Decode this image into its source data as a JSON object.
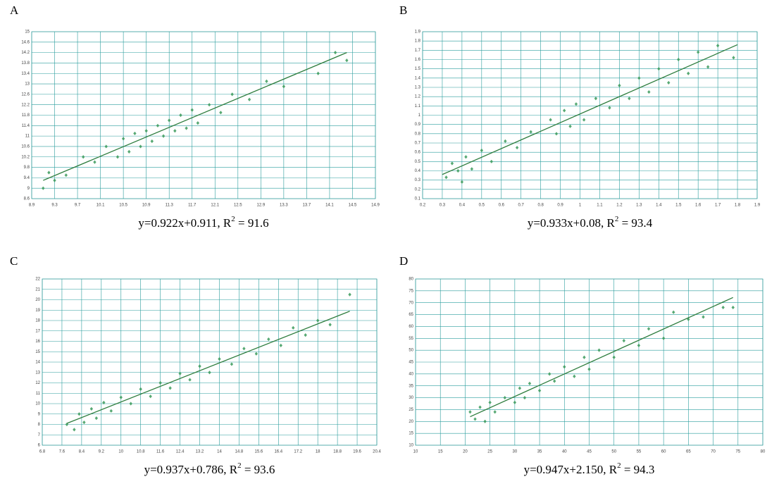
{
  "chart_data": [
    {
      "type": "scatter",
      "label": "A",
      "equation": {
        "text": "y=0.922x+0.911,  R",
        "superscript": "2",
        "value": " =  91.6"
      },
      "xlim": [
        8.9,
        14.9
      ],
      "ylim": [
        8.6,
        15
      ],
      "xticks": [
        8.9,
        9.3,
        9.7,
        10.1,
        10.5,
        10.9,
        11.3,
        11.7,
        12.1,
        12.5,
        12.9,
        13.3,
        13.7,
        14.1,
        14.5,
        14.9
      ],
      "yticks": [
        8.6,
        9,
        9.4,
        9.8,
        10.2,
        10.6,
        11,
        11.4,
        11.8,
        12.2,
        12.6,
        13,
        13.4,
        13.8,
        14.2,
        14.6,
        15
      ],
      "grid": true,
      "color": "#3a9a5a",
      "series": [
        {
          "color": "#3a9a5a",
          "x": [
            9.1,
            9.2,
            9.3,
            9.5,
            9.8,
            10.0,
            10.2,
            10.4,
            10.5,
            10.6,
            10.7,
            10.8,
            10.9,
            11.0,
            11.1,
            11.2,
            11.3,
            11.4,
            11.5,
            11.6,
            11.7,
            11.8,
            12.0,
            12.2,
            12.4,
            12.7,
            13.0,
            13.3,
            13.9,
            14.2,
            14.4
          ],
          "y": [
            9.0,
            9.6,
            9.3,
            9.5,
            10.2,
            10.0,
            10.6,
            10.2,
            10.9,
            10.4,
            11.1,
            10.6,
            11.2,
            10.8,
            11.4,
            11.0,
            11.6,
            11.2,
            11.8,
            11.3,
            12.0,
            11.5,
            12.2,
            11.9,
            12.6,
            12.4,
            13.1,
            12.9,
            13.4,
            14.2,
            13.9
          ]
        }
      ],
      "fit_line": {
        "color": "#2e7d3e",
        "x": [
          9.1,
          14.4
        ],
        "y": [
          9.3,
          14.2
        ]
      }
    },
    {
      "type": "scatter",
      "label": "B",
      "equation": {
        "text": "y=0.933x+0.08,  R",
        "superscript": "2",
        "value": " =  93.4"
      },
      "xlim": [
        0.2,
        1.9
      ],
      "ylim": [
        0.1,
        1.9
      ],
      "xticks": [
        0.2,
        0.3,
        0.4,
        0.5,
        0.6,
        0.7,
        0.8,
        0.9,
        1,
        1.1,
        1.2,
        1.3,
        1.4,
        1.5,
        1.6,
        1.7,
        1.8,
        1.9
      ],
      "yticks": [
        0.1,
        0.2,
        0.3,
        0.4,
        0.5,
        0.6,
        0.7,
        0.8,
        0.9,
        1,
        1.1,
        1.2,
        1.3,
        1.4,
        1.5,
        1.6,
        1.7,
        1.8,
        1.9
      ],
      "grid": true,
      "color": "#3a9a5a",
      "series": [
        {
          "color": "#3a9a5a",
          "x": [
            0.32,
            0.35,
            0.38,
            0.4,
            0.42,
            0.45,
            0.5,
            0.55,
            0.62,
            0.68,
            0.75,
            0.85,
            0.88,
            0.92,
            0.95,
            0.98,
            1.02,
            1.08,
            1.15,
            1.2,
            1.25,
            1.3,
            1.35,
            1.4,
            1.45,
            1.5,
            1.55,
            1.6,
            1.65,
            1.7,
            1.78
          ],
          "y": [
            0.33,
            0.48,
            0.4,
            0.28,
            0.55,
            0.42,
            0.62,
            0.5,
            0.72,
            0.65,
            0.82,
            0.95,
            0.8,
            1.05,
            0.88,
            1.12,
            0.95,
            1.18,
            1.08,
            1.32,
            1.18,
            1.4,
            1.25,
            1.5,
            1.35,
            1.6,
            1.45,
            1.68,
            1.52,
            1.75,
            1.62
          ]
        }
      ],
      "fit_line": {
        "color": "#2e7d3e",
        "x": [
          0.3,
          1.8
        ],
        "y": [
          0.36,
          1.76
        ]
      }
    },
    {
      "type": "scatter",
      "label": "C",
      "equation": {
        "text": "y=0.937x+0.786,  R",
        "superscript": "2",
        "value": " =  93.6"
      },
      "xlim": [
        6.8,
        20.4
      ],
      "ylim": [
        6,
        22
      ],
      "xticks": [
        6.8,
        7.6,
        8.4,
        9.2,
        10,
        10.8,
        11.6,
        12.4,
        13.2,
        14,
        14.8,
        15.6,
        16.4,
        17.2,
        18,
        18.8,
        19.6,
        20.4
      ],
      "yticks": [
        6,
        7,
        8,
        9,
        10,
        11,
        12,
        13,
        14,
        15,
        16,
        17,
        18,
        19,
        20,
        21,
        22
      ],
      "grid": true,
      "color": "#3a9a5a",
      "series": [
        {
          "color": "#3a9a5a",
          "x": [
            7.8,
            8.1,
            8.3,
            8.5,
            8.8,
            9.0,
            9.3,
            9.6,
            10.0,
            10.4,
            10.8,
            11.2,
            11.6,
            12.0,
            12.4,
            12.8,
            13.2,
            13.6,
            14.0,
            14.5,
            15.0,
            15.5,
            16.0,
            16.5,
            17.0,
            17.5,
            18.0,
            18.5,
            19.3
          ],
          "y": [
            8.0,
            7.5,
            9.0,
            8.2,
            9.5,
            8.6,
            10.1,
            9.3,
            10.6,
            10.0,
            11.4,
            10.7,
            12.0,
            11.5,
            12.9,
            12.3,
            13.6,
            13.0,
            14.3,
            13.8,
            15.3,
            14.8,
            16.2,
            15.6,
            17.3,
            16.6,
            18.0,
            17.6,
            20.5
          ]
        }
      ],
      "fit_line": {
        "color": "#2e7d3e",
        "x": [
          7.8,
          19.3
        ],
        "y": [
          8.1,
          18.9
        ]
      }
    },
    {
      "type": "scatter",
      "label": "D",
      "equation": {
        "text": "y=0.947x+2.150,  R",
        "superscript": "2",
        "value": " =  94.3"
      },
      "xlim": [
        10,
        80
      ],
      "ylim": [
        10,
        80
      ],
      "xticks": [
        10,
        15,
        20,
        25,
        30,
        35,
        40,
        45,
        50,
        55,
        60,
        65,
        70,
        75,
        80
      ],
      "yticks": [
        10,
        15,
        20,
        25,
        30,
        35,
        40,
        45,
        50,
        55,
        60,
        65,
        70,
        75,
        80
      ],
      "grid": true,
      "color": "#3a9a5a",
      "series": [
        {
          "color": "#3a9a5a",
          "x": [
            21,
            22,
            23,
            24,
            25,
            26,
            28,
            30,
            31,
            32,
            33,
            35,
            37,
            38,
            40,
            42,
            44,
            45,
            47,
            50,
            52,
            55,
            57,
            60,
            62,
            65,
            68,
            72,
            74
          ],
          "y": [
            24,
            21,
            26,
            20,
            28,
            24,
            30,
            28,
            34,
            30,
            36,
            33,
            40,
            37,
            43,
            39,
            47,
            42,
            50,
            47,
            54,
            52,
            59,
            55,
            66,
            63,
            64,
            68,
            68
          ]
        }
      ],
      "fit_line": {
        "color": "#2e7d3e",
        "x": [
          21,
          74
        ],
        "y": [
          22.0,
          72.2
        ]
      }
    }
  ]
}
